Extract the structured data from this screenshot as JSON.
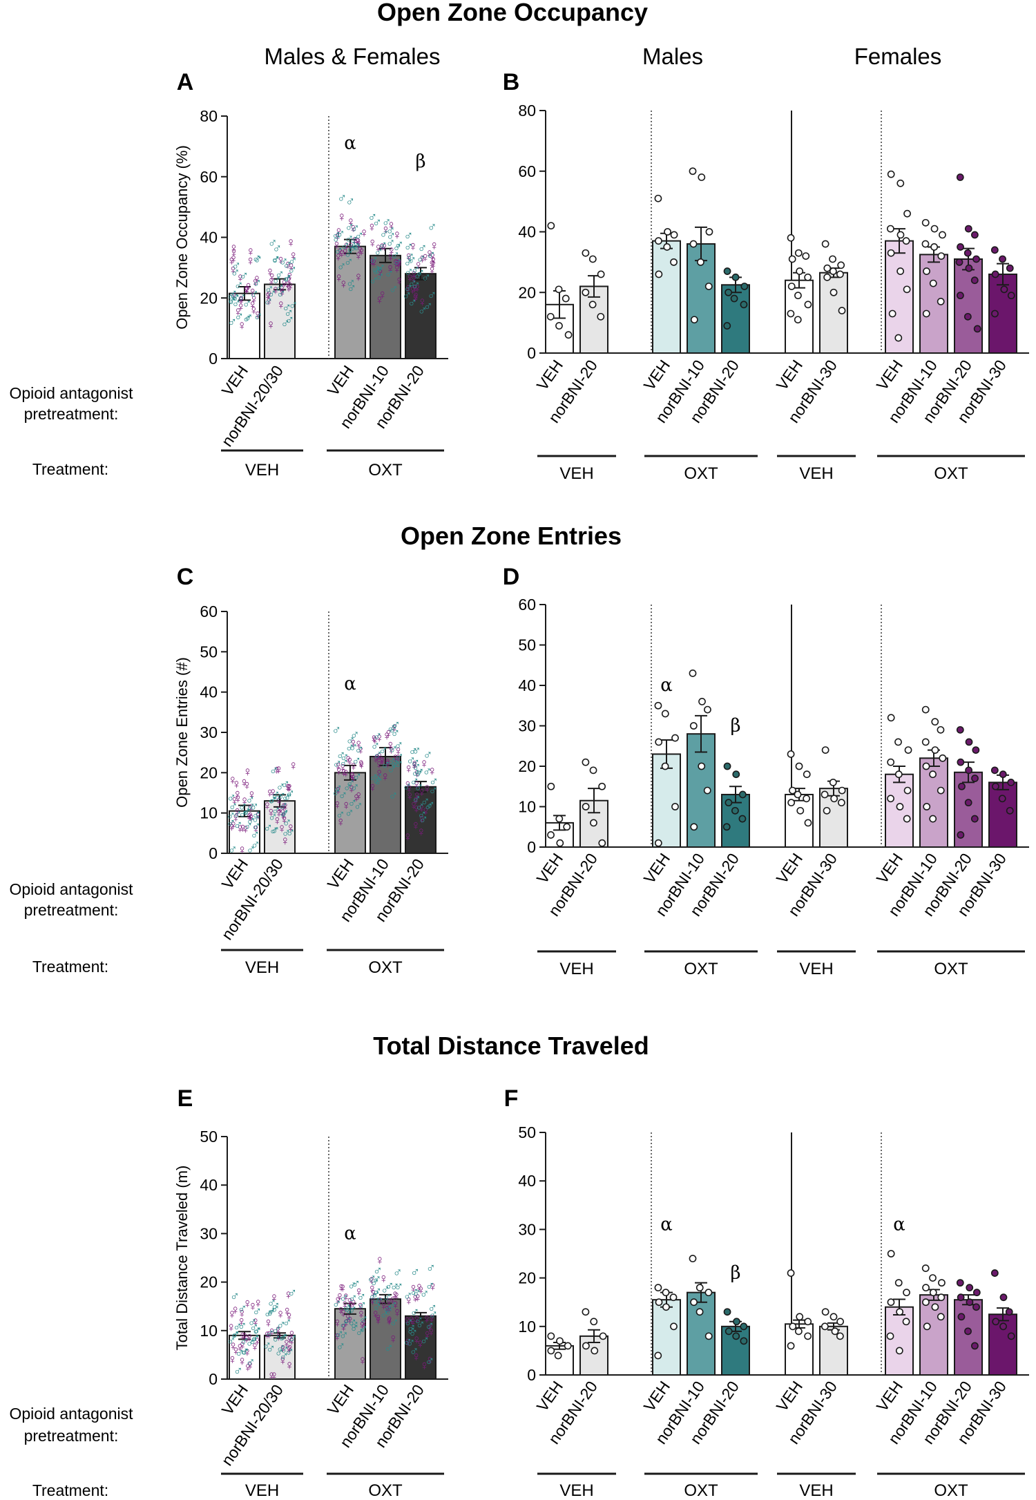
{
  "figure": {
    "sections": [
      {
        "title": "Open Zone Occupancy"
      },
      {
        "title": "Open Zone Entries"
      },
      {
        "title": "Total Distance Traveled"
      }
    ],
    "headers": {
      "combined": "Males & Females",
      "males": "Males",
      "females": "Females"
    },
    "row_labels": {
      "pretreatment_line1": "Opioid antagonist",
      "pretreatment_line2": "pretreatment:",
      "treatment": "Treatment:"
    },
    "colors": {
      "male": "#2b8c8c",
      "female": "#7a1a7a",
      "combined_veh_veh": "#ffffff",
      "combined_veh_nor": "#e6e6e6",
      "combined_oxt_veh": "#a0a0a0",
      "combined_oxt_nor10": "#6b6b6b",
      "combined_oxt_nor20": "#333333",
      "male_veh": "#ffffff",
      "male_nor20": "#e6e6e6",
      "male_oxt_veh": "#d6ebeb",
      "male_oxt_nor10": "#5e9fa3",
      "male_oxt_nor20": "#2f7a7e",
      "female_veh": "#ffffff",
      "female_nor30": "#e6e6e6",
      "female_oxt_veh": "#ead4ea",
      "female_oxt_nor10": "#c9a3c9",
      "female_oxt_nor20": "#9a5c9a",
      "female_oxt_nor30": "#6b166b",
      "dot_male": "#2b6b6b",
      "dot_female": "#6b1a6b"
    }
  },
  "chart_data": [
    {
      "id": "A",
      "type": "bar",
      "ylabel": "Open Zone Occupancy (%)",
      "ylim": [
        0,
        80
      ],
      "yticks": [
        0,
        20,
        40,
        60,
        80
      ],
      "categories": [
        "VEH",
        "norBNI-20/30",
        "VEH",
        "norBNI-10",
        "norBNI-20"
      ],
      "treatment_groups": [
        {
          "label": "VEH",
          "count": 2
        },
        {
          "label": "OXT",
          "count": 3
        }
      ],
      "values": [
        21.5,
        24.5,
        37,
        34,
        28
      ],
      "sem": [
        2.2,
        1.8,
        2.3,
        2.3,
        2.0
      ],
      "annotations": [
        {
          "index": 2,
          "symbol": "α",
          "y": 71
        },
        {
          "index": 4,
          "symbol": "β",
          "y": 65
        }
      ]
    },
    {
      "id": "B",
      "type": "bar",
      "ylim": [
        0,
        80
      ],
      "yticks": [
        0,
        20,
        40,
        60,
        80
      ],
      "categories": [
        "VEH",
        "norBNI-20",
        "VEH",
        "norBNI-10",
        "norBNI-20",
        "VEH",
        "norBNI-30",
        "VEH",
        "norBNI-10",
        "norBNI-20",
        "norBNI-30"
      ],
      "treatment_groups": [
        {
          "label": "VEH",
          "count": 2
        },
        {
          "label": "OXT",
          "count": 3
        },
        {
          "label": "VEH",
          "count": 2
        },
        {
          "label": "OXT",
          "count": 4
        }
      ],
      "values": [
        16,
        22,
        37,
        36,
        22.5,
        24,
        26.5,
        37,
        32.5,
        31,
        26
      ],
      "sem": [
        4.5,
        3.5,
        2.5,
        5.5,
        2.5,
        2.5,
        1.5,
        4,
        2.5,
        3.5,
        3.5
      ],
      "points": [
        [
          42,
          21,
          18,
          12,
          9,
          6
        ],
        [
          33,
          31,
          26,
          20,
          16,
          12
        ],
        [
          51,
          40,
          39,
          37,
          35,
          30,
          26
        ],
        [
          60,
          58,
          40,
          36,
          30,
          22,
          11
        ],
        [
          27,
          25,
          22,
          20,
          18,
          16,
          9
        ],
        [
          38,
          33,
          32,
          31,
          27,
          25,
          22,
          19,
          16,
          13,
          11
        ],
        [
          36,
          31,
          29,
          28,
          27,
          26,
          25,
          20,
          14
        ],
        [
          59,
          56,
          46,
          41,
          39,
          37,
          33,
          27,
          21,
          13,
          5
        ],
        [
          43,
          41,
          39,
          36,
          35,
          32,
          27,
          23,
          17,
          13
        ],
        [
          58,
          41,
          39,
          35,
          33,
          31,
          30,
          28,
          24,
          19,
          12,
          8
        ],
        [
          34,
          31,
          28,
          26,
          21,
          19,
          13
        ]
      ],
      "annotations": []
    },
    {
      "id": "C",
      "type": "bar",
      "ylabel": "Open Zone Entries (#)",
      "ylim": [
        0,
        60
      ],
      "yticks": [
        0,
        10,
        20,
        30,
        40,
        50,
        60
      ],
      "categories": [
        "VEH",
        "norBNI-20/30",
        "VEH",
        "norBNI-10",
        "norBNI-20"
      ],
      "treatment_groups": [
        {
          "label": "VEH",
          "count": 2
        },
        {
          "label": "OXT",
          "count": 3
        }
      ],
      "values": [
        10.5,
        13,
        20,
        24,
        16.5
      ],
      "sem": [
        1.4,
        1.5,
        1.8,
        2.2,
        1.3
      ],
      "annotations": [
        {
          "index": 2,
          "symbol": "α",
          "y": 42
        }
      ]
    },
    {
      "id": "D",
      "type": "bar",
      "ylim": [
        0,
        60
      ],
      "yticks": [
        0,
        10,
        20,
        30,
        40,
        50,
        60
      ],
      "categories": [
        "VEH",
        "norBNI-20",
        "VEH",
        "norBNI-10",
        "norBNI-20",
        "VEH",
        "norBNI-30",
        "VEH",
        "norBNI-10",
        "norBNI-20",
        "norBNI-30"
      ],
      "treatment_groups": [
        {
          "label": "VEH",
          "count": 2
        },
        {
          "label": "OXT",
          "count": 3
        },
        {
          "label": "VEH",
          "count": 2
        },
        {
          "label": "OXT",
          "count": 4
        }
      ],
      "values": [
        6,
        11.5,
        23,
        28,
        13,
        13,
        14.5,
        18,
        22,
        18.5,
        16
      ],
      "sem": [
        1.8,
        3,
        3.5,
        4.5,
        2,
        1.5,
        1.8,
        2,
        2,
        2.5,
        1.8
      ],
      "points": [
        [
          15,
          7,
          5,
          3,
          1
        ],
        [
          21,
          19,
          15,
          10,
          6,
          1
        ],
        [
          35,
          33,
          27,
          26,
          20,
          10,
          1
        ],
        [
          43,
          36,
          34,
          30,
          20,
          14,
          5
        ],
        [
          20,
          18,
          13,
          11,
          9,
          7,
          5
        ],
        [
          23,
          20,
          18,
          14,
          13,
          12,
          11,
          9,
          6
        ],
        [
          24,
          16,
          14,
          13,
          12,
          11,
          9
        ],
        [
          32,
          26,
          24,
          21,
          18,
          14,
          12,
          10,
          7
        ],
        [
          34,
          31,
          29,
          26,
          24,
          22,
          20,
          18,
          14,
          10,
          7
        ],
        [
          29,
          26,
          24,
          21,
          19,
          17,
          15,
          11,
          7,
          3
        ],
        [
          19,
          18,
          16,
          15,
          12,
          9
        ]
      ],
      "annotations": [
        {
          "index": 2,
          "symbol": "α",
          "y": 40
        },
        {
          "index": 4,
          "symbol": "β",
          "y": 30
        }
      ]
    },
    {
      "id": "E",
      "type": "bar",
      "ylabel": "Total Distance Traveled (m)",
      "ylim": [
        0,
        50
      ],
      "yticks": [
        0,
        10,
        20,
        30,
        40,
        50
      ],
      "categories": [
        "VEH",
        "norBNI-20/30",
        "VEH",
        "norBNI-10",
        "norBNI-20"
      ],
      "treatment_groups": [
        {
          "label": "VEH",
          "count": 2
        },
        {
          "label": "OXT",
          "count": 3
        }
      ],
      "values": [
        9,
        9,
        14.5,
        16.5,
        13
      ],
      "sem": [
        0.8,
        0.5,
        1.1,
        0.9,
        0.7
      ],
      "annotations": [
        {
          "index": 2,
          "symbol": "α",
          "y": 30
        }
      ]
    },
    {
      "id": "F",
      "type": "bar",
      "ylim": [
        0,
        50
      ],
      "yticks": [
        0,
        10,
        20,
        30,
        40,
        50
      ],
      "categories": [
        "VEH",
        "norBNI-20",
        "VEH",
        "norBNI-10",
        "norBNI-20",
        "VEH",
        "norBNI-30",
        "VEH",
        "norBNI-10",
        "norBNI-20",
        "norBNI-30"
      ],
      "treatment_groups": [
        {
          "label": "VEH",
          "count": 2
        },
        {
          "label": "OXT",
          "count": 3
        },
        {
          "label": "VEH",
          "count": 2
        },
        {
          "label": "OXT",
          "count": 4
        }
      ],
      "values": [
        6,
        8,
        15.5,
        17,
        10,
        10.5,
        10,
        14,
        16.5,
        15.5,
        12.5
      ],
      "sem": [
        0.7,
        1.3,
        1.5,
        2,
        1,
        0.8,
        0.7,
        1.6,
        1.1,
        1,
        1.3
      ],
      "points": [
        [
          8,
          7,
          6,
          5,
          4
        ],
        [
          13,
          11,
          8,
          6,
          5
        ],
        [
          18,
          17,
          16,
          15,
          14,
          10,
          4
        ],
        [
          24,
          18,
          17,
          15,
          13,
          8
        ],
        [
          13,
          11,
          10,
          9,
          8,
          7
        ],
        [
          21,
          12,
          11,
          10,
          9,
          8,
          6
        ],
        [
          13,
          12,
          11,
          10,
          9,
          8
        ],
        [
          25,
          19,
          17,
          15,
          13,
          11,
          8,
          5
        ],
        [
          22,
          20,
          19,
          18,
          17,
          16,
          15,
          14,
          12,
          10
        ],
        [
          19,
          18,
          17,
          16,
          15,
          14,
          12,
          9,
          6
        ],
        [
          21,
          16,
          13,
          11,
          10,
          8
        ]
      ],
      "annotations": [
        {
          "index": 2,
          "symbol": "α",
          "y": 31
        },
        {
          "index": 4,
          "symbol": "β",
          "y": 21
        },
        {
          "index": 7,
          "symbol": "α",
          "y": 31
        }
      ]
    }
  ]
}
